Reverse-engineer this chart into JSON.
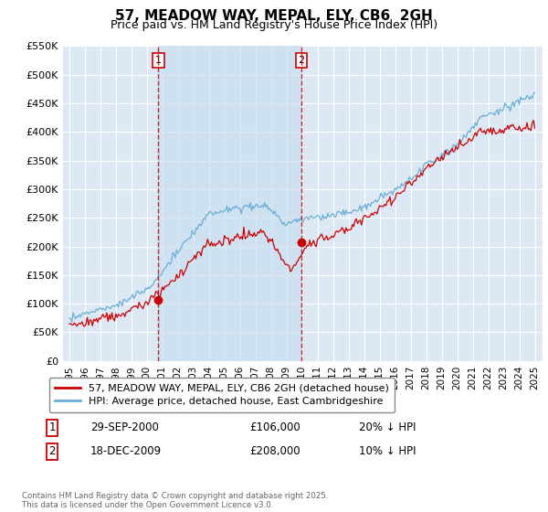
{
  "title": "57, MEADOW WAY, MEPAL, ELY, CB6  2GH",
  "subtitle": "Price paid vs. HM Land Registry's House Price Index (HPI)",
  "legend_entry1": "57, MEADOW WAY, MEPAL, ELY, CB6 2GH (detached house)",
  "legend_entry2": "HPI: Average price, detached house, East Cambridgeshire",
  "footnote": "Contains HM Land Registry data © Crown copyright and database right 2025.\nThis data is licensed under the Open Government Licence v3.0.",
  "table": [
    {
      "num": "1",
      "date": "29-SEP-2000",
      "price": "£106,000",
      "hpi": "20% ↓ HPI"
    },
    {
      "num": "2",
      "date": "18-DEC-2009",
      "price": "£208,000",
      "hpi": "10% ↓ HPI"
    }
  ],
  "sale1_year": 2000.75,
  "sale1_price": 106000,
  "sale2_year": 2009.96,
  "sale2_price": 208000,
  "vline1_year": 2000.75,
  "vline2_year": 2009.96,
  "ylim": [
    0,
    550000
  ],
  "yticks": [
    0,
    50000,
    100000,
    150000,
    200000,
    250000,
    300000,
    350000,
    400000,
    450000,
    500000,
    550000
  ],
  "background_color": "#ffffff",
  "plot_bg_color": "#dce9f5",
  "shade_color": "#c8dff0",
  "grid_color": "#ffffff",
  "hpi_line_color": "#6baed6",
  "price_line_color": "#cc0000",
  "vline_color": "#cc0000",
  "title_fontsize": 11,
  "subtitle_fontsize": 9
}
